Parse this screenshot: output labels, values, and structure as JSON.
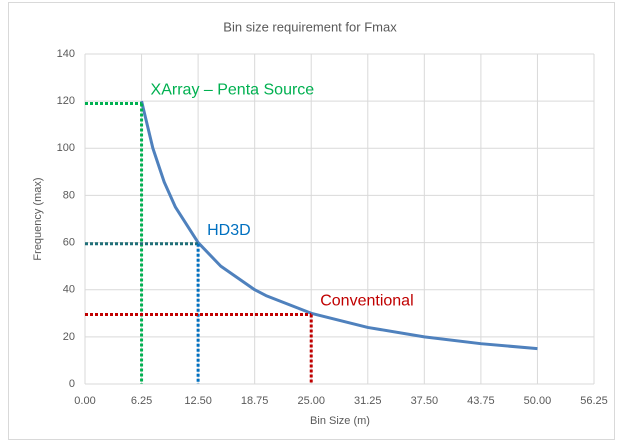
{
  "chart_data": {
    "type": "line",
    "title": "Bin size requirement for Fmax",
    "x_label": "Bin Size (m)",
    "y_label": "Frequency (max)",
    "x": [
      6.25,
      7.5,
      8.75,
      10,
      12.5,
      15,
      18.75,
      20,
      25,
      31.25,
      37.5,
      43.75,
      50
    ],
    "values": [
      120,
      100,
      85.7,
      75,
      60,
      50,
      40,
      37.5,
      30,
      24,
      20,
      17.1,
      15
    ],
    "color": "#4f81bd",
    "xlim": [
      0,
      56.25
    ],
    "xticks": [
      {
        "value": 0,
        "label": "0.00"
      },
      {
        "value": 6.25,
        "label": "6.25"
      },
      {
        "value": 12.5,
        "label": "12.50"
      },
      {
        "value": 18.75,
        "label": "18.75"
      },
      {
        "value": 25,
        "label": "25.00"
      },
      {
        "value": 31.25,
        "label": "31.25"
      },
      {
        "value": 37.5,
        "label": "37.50"
      },
      {
        "value": 43.75,
        "label": "43.75"
      },
      {
        "value": 50,
        "label": "50.00"
      },
      {
        "value": 56.25,
        "label": "56.25"
      }
    ],
    "ylim": [
      0,
      140
    ],
    "yticks": [
      0,
      20,
      40,
      60,
      80,
      100,
      120,
      140
    ],
    "grid": true,
    "reference_lines": [
      {
        "x": 6.25,
        "y": 119,
        "label": "XArray – Penta Source",
        "h_color": "#00b050",
        "v_color": "#00b050",
        "label_color": "#00b050"
      },
      {
        "x": 12.5,
        "y": 59.5,
        "label": "HD3D",
        "h_color": "#1f6f78",
        "v_color": "#0070c0",
        "label_color": "#0070c0"
      },
      {
        "x": 25,
        "y": 29.5,
        "label": "Conventional",
        "h_color": "#c00000",
        "v_color": "#c00000",
        "label_color": "#c00000"
      }
    ]
  }
}
